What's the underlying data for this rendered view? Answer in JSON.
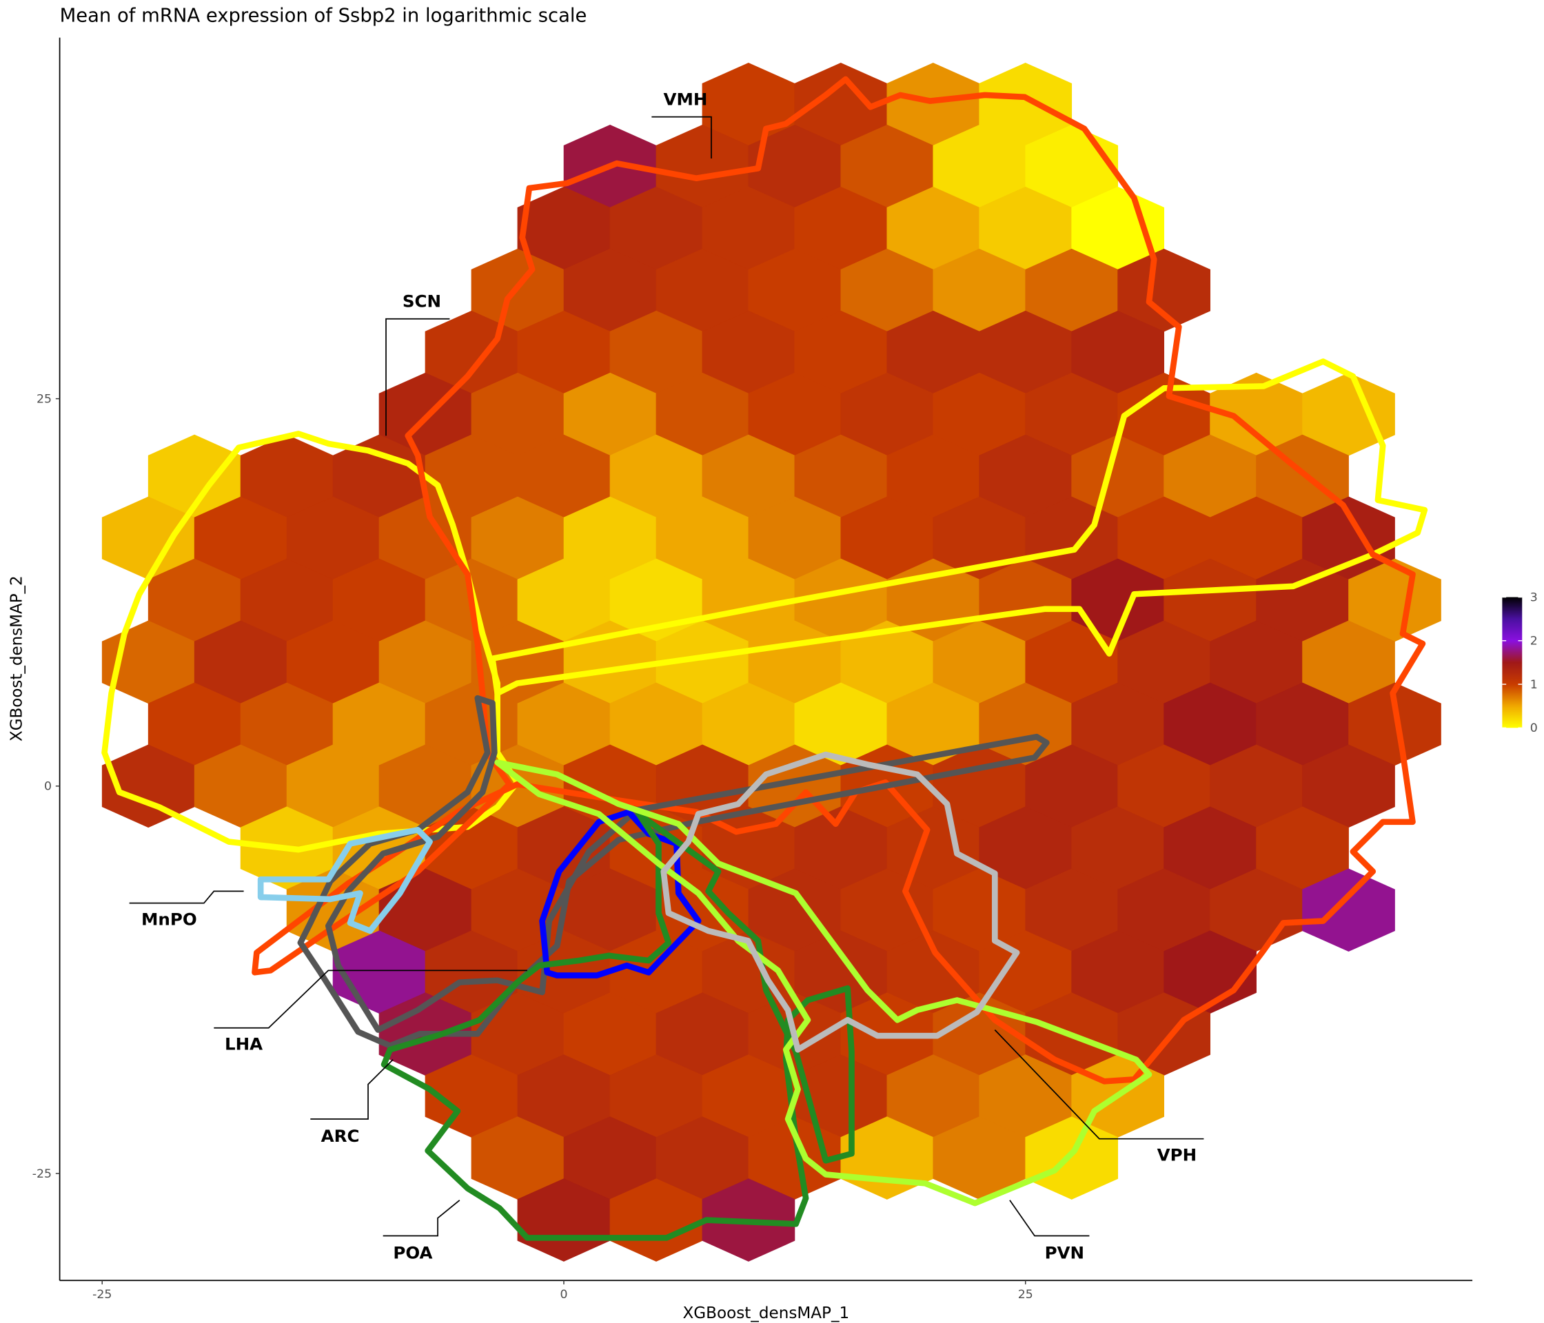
{
  "chart_data": {
    "type": "hexbin",
    "title": "Mean of mRNA expression of Ssbp2 in logarithmic scale",
    "x_label": "XGBoost_densMAP_1",
    "y_label": "XGBoost_densMAP_2",
    "xlim": [
      -27.3,
      49.2
    ],
    "ylim": [
      -31.9,
      48.3
    ],
    "xticks": [
      -25,
      0,
      25
    ],
    "yticks": [
      -25,
      0,
      25
    ],
    "colorscale": [
      [
        0,
        "#ffff00"
      ],
      [
        0.5,
        "#f0a800"
      ],
      [
        1,
        "#c83c00"
      ],
      [
        1.5,
        "#a01818"
      ],
      [
        2,
        "#8a10e0"
      ],
      [
        2.5,
        "#4a10a0"
      ],
      [
        3,
        "#000000"
      ]
    ],
    "colorbar": {
      "lim": [
        0,
        3
      ],
      "ticks": [
        0,
        1,
        2,
        3
      ]
    },
    "hexbins": [
      {
        "y": 44,
        "x": [
          10,
          15,
          20,
          25
        ],
        "values": [
          1.0,
          1.1,
          0.6,
          0.2
        ]
      },
      {
        "y": 40,
        "x": [
          2.5,
          7.5,
          12.5,
          17.5,
          22.5,
          27.5
        ],
        "values": [
          1.6,
          1.1,
          1.2,
          0.9,
          0.2,
          0.1
        ]
      },
      {
        "y": 36,
        "x": [
          0,
          5,
          10,
          15,
          20,
          25,
          30
        ],
        "values": [
          1.3,
          1.2,
          1.1,
          1.0,
          0.5,
          0.3,
          0.0
        ]
      },
      {
        "y": 32,
        "x": [
          -2.5,
          2.5,
          7.5,
          12.5,
          17.5,
          22.5,
          27.5,
          32.5
        ],
        "values": [
          0.9,
          1.2,
          1.1,
          1.0,
          0.8,
          0.6,
          0.8,
          1.2
        ]
      },
      {
        "y": 28,
        "x": [
          -5,
          0,
          5,
          10,
          15,
          20,
          25,
          30
        ],
        "values": [
          1.1,
          1.0,
          0.9,
          1.1,
          1.0,
          1.2,
          1.2,
          1.3
        ]
      },
      {
        "y": 24,
        "x": [
          -7.5,
          -2.5,
          2.5,
          7.5,
          12.5,
          17.5,
          22.5,
          27.5,
          32.5,
          37.5,
          42.5
        ],
        "values": [
          1.3,
          0.9,
          0.6,
          0.9,
          1.0,
          1.1,
          1.0,
          1.1,
          1.0,
          0.5,
          0.4
        ]
      },
      {
        "y": 20,
        "x": [
          -20,
          -15,
          -10,
          -5,
          0,
          5,
          10,
          15,
          20,
          25,
          30,
          35,
          40
        ],
        "values": [
          0.3,
          1.1,
          1.2,
          0.9,
          0.9,
          0.5,
          0.7,
          0.9,
          1.0,
          1.2,
          0.9,
          0.7,
          0.8
        ]
      },
      {
        "y": 16,
        "x": [
          -22.5,
          -17.5,
          -12.5,
          -7.5,
          -2.5,
          2.5,
          7.5,
          12.5,
          17.5,
          22.5,
          27.5,
          32.5,
          37.5,
          42.5
        ],
        "values": [
          0.4,
          1.0,
          1.1,
          0.9,
          0.7,
          0.3,
          0.5,
          0.7,
          1.0,
          1.1,
          1.2,
          1.0,
          1.0,
          1.4
        ]
      },
      {
        "y": 12,
        "x": [
          -20,
          -15,
          -10,
          -5,
          0,
          5,
          10,
          15,
          20,
          25,
          30,
          35,
          40,
          45
        ],
        "values": [
          0.9,
          1.1,
          1.0,
          0.8,
          0.3,
          0.2,
          0.5,
          0.6,
          0.7,
          0.9,
          1.5,
          1.1,
          1.3,
          0.6
        ]
      },
      {
        "y": 8,
        "x": [
          -22.5,
          -17.5,
          -12.5,
          -7.5,
          -2.5,
          2.5,
          7.5,
          12.5,
          17.5,
          22.5,
          27.5,
          32.5,
          37.5,
          42.5
        ],
        "values": [
          0.8,
          1.2,
          1.0,
          0.7,
          0.8,
          0.4,
          0.3,
          0.5,
          0.4,
          0.6,
          1.0,
          1.2,
          1.3,
          0.7
        ]
      },
      {
        "y": 4,
        "x": [
          -20,
          -15,
          -10,
          -5,
          0,
          5,
          10,
          15,
          20,
          25,
          30,
          35,
          40,
          45
        ],
        "values": [
          1.0,
          0.9,
          0.6,
          0.8,
          0.6,
          0.5,
          0.4,
          0.2,
          0.5,
          0.8,
          1.2,
          1.5,
          1.4,
          1.1
        ]
      },
      {
        "y": 0,
        "x": [
          -22.5,
          -17.5,
          -12.5,
          -7.5,
          -2.5,
          2.5,
          7.5,
          12.5,
          17.5,
          22.5,
          27.5,
          32.5,
          37.5,
          42.5
        ],
        "values": [
          1.2,
          0.8,
          0.6,
          0.8,
          0.7,
          1.0,
          1.1,
          0.8,
          1.0,
          1.1,
          1.3,
          1.1,
          1.2,
          1.3
        ]
      },
      {
        "y": -4,
        "x": [
          -15,
          -10,
          -5,
          0,
          5,
          10,
          15,
          20,
          25,
          30,
          35,
          40
        ],
        "values": [
          0.3,
          0.5,
          1.0,
          1.2,
          1.0,
          1.1,
          1.2,
          1.1,
          1.3,
          1.2,
          1.4,
          1.1
        ]
      },
      {
        "y": -8,
        "x": [
          -12.5,
          -7.5,
          -2.5,
          2.5,
          7.5,
          12.5,
          17.5,
          22.5,
          27.5,
          32.5,
          37.5,
          42.5
        ],
        "values": [
          0.6,
          1.4,
          1.1,
          1.2,
          1.0,
          1.2,
          1.1,
          1.0,
          1.2,
          1.3,
          1.2,
          1.8
        ]
      },
      {
        "y": -12,
        "x": [
          -10,
          -5,
          0,
          5,
          10,
          15,
          20,
          25,
          30,
          35
        ],
        "values": [
          1.8,
          1.2,
          1.1,
          1.0,
          1.1,
          1.2,
          1.1,
          1.0,
          1.3,
          1.5
        ]
      },
      {
        "y": -16,
        "x": [
          -7.5,
          -2.5,
          2.5,
          7.5,
          12.5,
          17.5,
          22.5,
          27.5,
          32.5
        ],
        "values": [
          1.6,
          1.1,
          1.0,
          1.2,
          1.1,
          1.0,
          0.9,
          1.1,
          1.2
        ]
      },
      {
        "y": -20,
        "x": [
          -5,
          0,
          5,
          10,
          15,
          20,
          25,
          30
        ],
        "values": [
          1.0,
          1.2,
          1.1,
          1.0,
          1.1,
          0.8,
          0.7,
          0.5
        ]
      },
      {
        "y": -24,
        "x": [
          -2.5,
          2.5,
          7.5,
          12.5,
          17.5,
          22.5,
          27.5
        ],
        "values": [
          0.9,
          1.3,
          1.2,
          1.0,
          0.4,
          0.7,
          0.2
        ]
      },
      {
        "y": -28,
        "x": [
          0,
          5,
          10
        ],
        "values": [
          1.4,
          1.0,
          1.6
        ]
      }
    ],
    "annotations": [
      "VMH",
      "SCN",
      "MnPO",
      "LHA",
      "ARC",
      "POA",
      "PVN",
      "VPH"
    ]
  }
}
